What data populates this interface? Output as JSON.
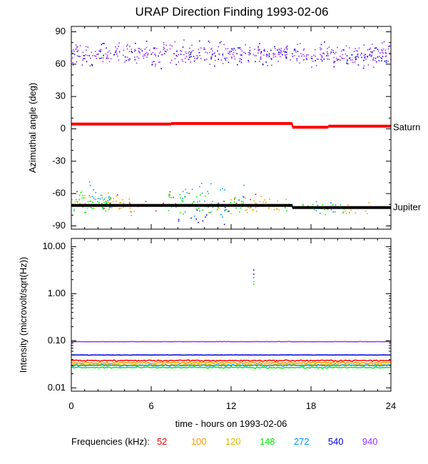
{
  "colors": {
    "52": "#ff0000",
    "100": "#ff9900",
    "120": "#ddbb00",
    "148": "#00ee00",
    "272": "#0099ff",
    "540": "#0000dd",
    "940": "#9933ff",
    "axis": "#000000",
    "saturn": "#ff0000",
    "jupiter": "#000000"
  },
  "chart_data": [
    {
      "type": "scatter",
      "title": "URAP Direction Finding  1993-02-06",
      "xlabel": "time - hours on 1993-02-06",
      "ylabel": "Azimuthal angle (deg)",
      "xlim": [
        0,
        24
      ],
      "ylim": [
        -93,
        95
      ],
      "yticks": [
        90,
        60,
        30,
        0,
        -30,
        -60,
        -90
      ],
      "ytick_labels": [
        "90",
        "60",
        "30",
        "0",
        "-30",
        "-60",
        "-90"
      ],
      "reference_lines": [
        {
          "name": "Saturn",
          "label": "Saturn",
          "segments": [
            [
              0,
              7.5,
              4.5
            ],
            [
              7.5,
              16.6,
              5.0
            ],
            [
              16.6,
              19.3,
              1.5
            ],
            [
              19.3,
              24,
              2.5
            ]
          ]
        },
        {
          "name": "Jupiter",
          "label": "Jupiter",
          "segments": [
            [
              0,
              16.6,
              -71.0
            ],
            [
              16.6,
              24,
              -73.0
            ]
          ]
        }
      ],
      "clusters": [
        {
          "freq": "940",
          "t": [
            0,
            24
          ],
          "center": 70,
          "spread": 7,
          "n": 420
        },
        {
          "freq": "540",
          "t": [
            0,
            24
          ],
          "center": 68,
          "spread": 8,
          "n": 160
        },
        {
          "freq": "148",
          "t": [
            0,
            3
          ],
          "center": -68,
          "spread": 7,
          "n": 45
        },
        {
          "freq": "272",
          "t": [
            1,
            3
          ],
          "center": -60,
          "spread": 10,
          "n": 18
        },
        {
          "freq": "120",
          "t": [
            0,
            3
          ],
          "center": -67,
          "spread": 6,
          "n": 25
        },
        {
          "freq": "100",
          "t": [
            3,
            5
          ],
          "center": -70,
          "spread": 6,
          "n": 20
        },
        {
          "freq": "52",
          "t": [
            0,
            14
          ],
          "center": -68,
          "spread": 6,
          "n": 30
        },
        {
          "freq": "148",
          "t": [
            7,
            13
          ],
          "center": -68,
          "spread": 8,
          "n": 50
        },
        {
          "freq": "272",
          "t": [
            8,
            13
          ],
          "center": -65,
          "spread": 12,
          "n": 30
        },
        {
          "freq": "540",
          "t": [
            8,
            13
          ],
          "center": -80,
          "spread": 8,
          "n": 14
        },
        {
          "freq": "120",
          "t": [
            10,
            14
          ],
          "center": -70,
          "spread": 5,
          "n": 20
        },
        {
          "freq": "100",
          "t": [
            13,
            16.5
          ],
          "center": -70,
          "spread": 5,
          "n": 30
        },
        {
          "freq": "148",
          "t": [
            16,
            21
          ],
          "center": -72,
          "spread": 5,
          "n": 22
        },
        {
          "freq": "272",
          "t": [
            18,
            20
          ],
          "center": -72,
          "spread": 5,
          "n": 10
        },
        {
          "freq": "100",
          "t": [
            20,
            23
          ],
          "center": -74,
          "spread": 5,
          "n": 16
        }
      ]
    },
    {
      "type": "line",
      "xlabel": "time - hours on 1993-02-06",
      "ylabel": "Intensity (microvolt/sqrt(Hz))",
      "xlim": [
        0,
        24
      ],
      "ylim": [
        0.0085,
        15
      ],
      "yscale": "log",
      "yticks": [
        10,
        1,
        0.1,
        0.01
      ],
      "ytick_labels": [
        "10.00",
        "1.00",
        "0.10",
        "0.01"
      ],
      "xticks": [
        0,
        6,
        12,
        18,
        24
      ],
      "xtick_labels": [
        "0",
        "6",
        "12",
        "18",
        "24"
      ],
      "series": [
        {
          "name": "52",
          "level": 0.038
        },
        {
          "name": "100",
          "level": 0.034
        },
        {
          "name": "120",
          "level": 0.031
        },
        {
          "name": "148",
          "level": 0.027
        },
        {
          "name": "272",
          "level": 0.03
        },
        {
          "name": "540",
          "level": 0.05
        },
        {
          "name": "940",
          "level": 0.096
        }
      ],
      "spikes": [
        {
          "freq": "540",
          "t": 13.7,
          "values": [
            3.2,
            2.6
          ]
        },
        {
          "freq": "148",
          "t": 13.7,
          "values": [
            1.8,
            1.6
          ]
        },
        {
          "freq": "940",
          "t": 13.7,
          "values": [
            2.2
          ]
        }
      ]
    }
  ],
  "legend": {
    "label": "Frequencies (kHz):",
    "items": [
      "52",
      "100",
      "120",
      "148",
      "272",
      "540",
      "940"
    ]
  }
}
